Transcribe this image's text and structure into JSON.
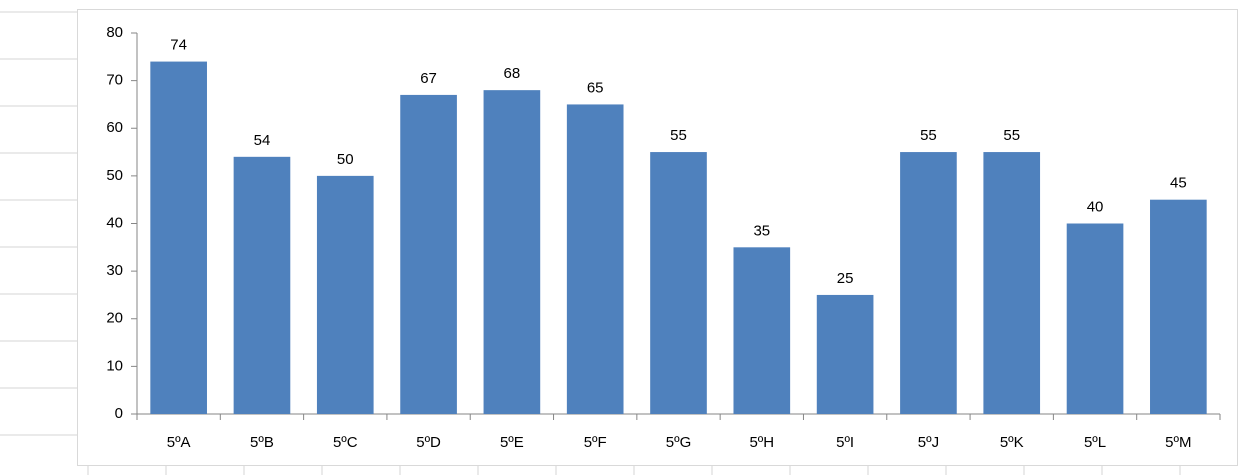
{
  "chart_data": {
    "type": "bar",
    "categories": [
      "5ºA",
      "5ºB",
      "5ºC",
      "5ºD",
      "5ºE",
      "5ºF",
      "5ºG",
      "5ºH",
      "5ºI",
      "5ºJ",
      "5ºK",
      "5ºL",
      "5ºM"
    ],
    "values": [
      74,
      54,
      50,
      67,
      68,
      65,
      55,
      35,
      25,
      55,
      55,
      40,
      45
    ],
    "color": "#4f81bd",
    "ylim": [
      0,
      80
    ],
    "yticks": [
      0,
      10,
      20,
      30,
      40,
      50,
      60,
      70,
      80
    ],
    "grid": false
  }
}
